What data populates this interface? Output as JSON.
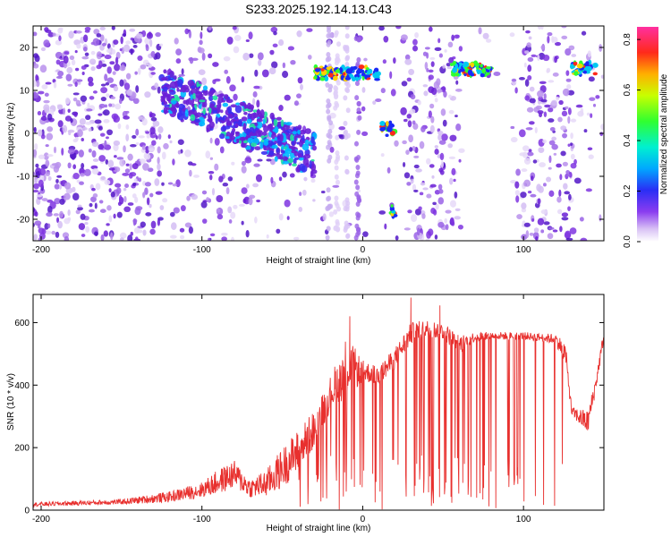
{
  "title": "S233.2025.192.14.13.C43",
  "chart_data": [
    {
      "type": "heatmap",
      "xlabel": "Height of straight line (km)",
      "ylabel": "Frequency (Hz)",
      "xlim": [
        -205,
        150
      ],
      "ylim": [
        -25,
        25
      ],
      "xticks": [
        -200,
        -100,
        0,
        100
      ],
      "yticks": [
        -20,
        -10,
        0,
        10,
        20
      ],
      "colorbar": {
        "label": "Normalized spectral amplitude",
        "range": [
          0,
          0.85
        ],
        "ticks": [
          "0.0",
          "0.2",
          "0.4",
          "0.6",
          "0.8"
        ],
        "tick_values": [
          0,
          0.2,
          0.4,
          0.6,
          0.8
        ],
        "colormap": "white-violet-blue-cyan-green-yellow-red-magenta"
      },
      "features": [
        {
          "name": "descending band",
          "x": [
            -125,
            -30
          ],
          "y": [
            10,
            -5
          ]
        },
        {
          "name": "line near 14 Hz",
          "x": [
            -30,
            10
          ],
          "y": [
            14,
            14
          ]
        },
        {
          "name": "line near 15 Hz",
          "x": [
            55,
            80
          ],
          "y": [
            15,
            15
          ]
        },
        {
          "name": "line near 15 Hz",
          "x": [
            130,
            145
          ],
          "y": [
            15,
            15
          ]
        },
        {
          "name": "spot",
          "x": [
            12,
            20
          ],
          "y": [
            1,
            1
          ]
        },
        {
          "name": "spot",
          "x": [
            18,
            20
          ],
          "y": [
            -18,
            -18
          ]
        }
      ],
      "grid": false
    },
    {
      "type": "line",
      "xlabel": "Height of straight line (km)",
      "ylabel": "SNR (10 * v/v)",
      "xlim": [
        -205,
        150
      ],
      "ylim": [
        0,
        690
      ],
      "xticks": [
        -200,
        -100,
        0,
        100
      ],
      "yticks": [
        0,
        200,
        400,
        600
      ],
      "color": "#e8302e",
      "envelope": [
        {
          "x": -205,
          "base": 12,
          "upper": 25
        },
        {
          "x": -150,
          "base": 18,
          "upper": 35
        },
        {
          "x": -120,
          "base": 25,
          "upper": 60
        },
        {
          "x": -100,
          "base": 40,
          "upper": 90
        },
        {
          "x": -90,
          "base": 50,
          "upper": 130
        },
        {
          "x": -80,
          "base": 70,
          "upper": 160
        },
        {
          "x": -70,
          "base": 40,
          "upper": 100
        },
        {
          "x": -60,
          "base": 40,
          "upper": 130
        },
        {
          "x": -50,
          "base": 70,
          "upper": 200
        },
        {
          "x": -40,
          "base": 120,
          "upper": 260
        },
        {
          "x": -30,
          "base": 200,
          "upper": 320
        },
        {
          "x": -20,
          "base": 320,
          "upper": 430
        },
        {
          "x": -10,
          "base": 360,
          "upper": 560
        },
        {
          "x": 0,
          "base": 410,
          "upper": 480
        },
        {
          "x": 10,
          "base": 400,
          "upper": 460
        },
        {
          "x": 20,
          "base": 450,
          "upper": 520
        },
        {
          "x": 30,
          "base": 530,
          "upper": 600
        },
        {
          "x": 40,
          "base": 550,
          "upper": 610
        },
        {
          "x": 50,
          "base": 545,
          "upper": 600
        },
        {
          "x": 60,
          "base": 500,
          "upper": 560
        },
        {
          "x": 70,
          "base": 540,
          "upper": 570
        },
        {
          "x": 80,
          "base": 545,
          "upper": 570
        },
        {
          "x": 90,
          "base": 545,
          "upper": 570
        },
        {
          "x": 100,
          "base": 545,
          "upper": 570
        },
        {
          "x": 110,
          "base": 540,
          "upper": 565
        },
        {
          "x": 120,
          "base": 530,
          "upper": 565
        },
        {
          "x": 126,
          "base": 470,
          "upper": 540
        },
        {
          "x": 130,
          "base": 300,
          "upper": 330
        },
        {
          "x": 140,
          "base": 240,
          "upper": 320
        },
        {
          "x": 145,
          "base": 380,
          "upper": 430
        },
        {
          "x": 150,
          "base": 540,
          "upper": 580
        }
      ],
      "peaks": [
        {
          "x": -8,
          "y": 620
        },
        {
          "x": 30,
          "y": 680
        },
        {
          "x": 48,
          "y": 655
        }
      ],
      "grid": false
    }
  ]
}
